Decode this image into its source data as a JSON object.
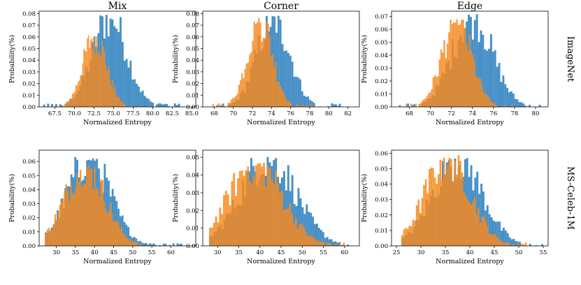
{
  "figure": {
    "columns": [
      "Mix",
      "Corner",
      "Edge"
    ],
    "rows": [
      "ImageNet",
      "MS-Celeb-1M"
    ]
  },
  "colors": {
    "blue": "#3d8ac4",
    "orange": "#f7891e"
  },
  "chart_data": [
    {
      "type": "bar",
      "row": "ImageNet",
      "column": "Mix",
      "xlabel": "Normalized Entropy",
      "ylabel": "Probability(%)",
      "xlim": [
        65.5,
        85.5
      ],
      "ylim": [
        0,
        0.082
      ],
      "xticks": [
        "67.5",
        "70.0",
        "72.5",
        "75.0",
        "77.5",
        "80.0",
        "82.5",
        "85.0"
      ],
      "yticks": [
        "0.00",
        "0.01",
        "0.02",
        "0.03",
        "0.04",
        "0.05",
        "0.06",
        "0.07",
        "0.08"
      ],
      "series": [
        {
          "color": "blue",
          "mean": 74.5,
          "sd": 2.2,
          "peak": 0.079,
          "range": [
            66.0,
            84.0
          ]
        },
        {
          "color": "orange",
          "mean": 72.6,
          "sd": 1.5,
          "peak": 0.063,
          "range": [
            67.8,
            78.0
          ]
        }
      ]
    },
    {
      "type": "bar",
      "row": "ImageNet",
      "column": "Corner",
      "xlabel": "Normalized Entropy",
      "ylabel": "Probability(%)",
      "xlim": [
        66.8,
        83.2
      ],
      "ylim": [
        0,
        0.082
      ],
      "xticks": [
        "68",
        "70",
        "72",
        "74",
        "76",
        "78",
        "80",
        "82"
      ],
      "yticks": [
        "0.00",
        "0.01",
        "0.02",
        "0.03",
        "0.04",
        "0.05",
        "0.06",
        "0.07",
        "0.08"
      ],
      "series": [
        {
          "color": "blue",
          "mean": 74.2,
          "sd": 1.7,
          "peak": 0.079,
          "range": [
            68.0,
            82.5
          ]
        },
        {
          "color": "orange",
          "mean": 72.8,
          "sd": 1.3,
          "peak": 0.078,
          "range": [
            67.8,
            79.0
          ]
        }
      ]
    },
    {
      "type": "bar",
      "row": "ImageNet",
      "column": "Edge",
      "xlabel": "Normalized Entropy",
      "ylabel": "Probability(%)",
      "xlim": [
        66.3,
        81.2
      ],
      "ylim": [
        0,
        0.074
      ],
      "xticks": [
        "68",
        "70",
        "72",
        "74",
        "76",
        "78",
        "80"
      ],
      "yticks": [
        "0.00",
        "0.01",
        "0.02",
        "0.03",
        "0.04",
        "0.05",
        "0.06",
        "0.07"
      ],
      "series": [
        {
          "color": "blue",
          "mean": 74.0,
          "sd": 1.9,
          "peak": 0.072,
          "range": [
            67.0,
            80.5
          ]
        },
        {
          "color": "orange",
          "mean": 72.5,
          "sd": 1.4,
          "peak": 0.068,
          "range": [
            67.5,
            78.0
          ]
        }
      ]
    },
    {
      "type": "bar",
      "row": "MS-Celeb-1M",
      "column": "Mix",
      "xlabel": "Normalized Entropy",
      "ylabel": "Probability(%)",
      "xlim": [
        25.5,
        66.5
      ],
      "ylim": [
        0,
        0.068
      ],
      "xticks": [
        "30",
        "35",
        "40",
        "45",
        "50",
        "55",
        "60"
      ],
      "yticks": [
        "0.00",
        "0.01",
        "0.02",
        "0.03",
        "0.04",
        "0.05",
        "0.06"
      ],
      "series": [
        {
          "color": "blue",
          "mean": 38.5,
          "sd": 5.6,
          "peak": 0.064,
          "range": [
            27.0,
            63.0
          ]
        },
        {
          "color": "orange",
          "mean": 37.5,
          "sd": 5.3,
          "peak": 0.058,
          "range": [
            27.0,
            56.0
          ]
        }
      ]
    },
    {
      "type": "bar",
      "row": "MS-Celeb-1M",
      "column": "Corner",
      "xlabel": "Normalized Entropy",
      "ylabel": "Probability(%)",
      "xlim": [
        26.5,
        63.5
      ],
      "ylim": [
        0,
        0.054
      ],
      "xticks": [
        "30",
        "35",
        "40",
        "45",
        "50",
        "55",
        "60"
      ],
      "yticks": [
        "0.00",
        "0.01",
        "0.02",
        "0.03",
        "0.04",
        "0.05"
      ],
      "series": [
        {
          "color": "blue",
          "mean": 42.0,
          "sd": 6.5,
          "peak": 0.051,
          "range": [
            28.0,
            62.0
          ]
        },
        {
          "color": "orange",
          "mean": 39.0,
          "sd": 6.3,
          "peak": 0.048,
          "range": [
            28.0,
            61.0
          ]
        }
      ]
    },
    {
      "type": "bar",
      "row": "MS-Celeb-1M",
      "column": "Edge",
      "xlabel": "Normalized Entropy",
      "ylabel": "Probability(%)",
      "xlim": [
        24.0,
        56.0
      ],
      "ylim": [
        0,
        0.062
      ],
      "xticks": [
        "25",
        "30",
        "35",
        "40",
        "45",
        "50",
        "55"
      ],
      "yticks": [
        "0.00",
        "0.01",
        "0.02",
        "0.03",
        "0.04",
        "0.05",
        "0.06"
      ],
      "series": [
        {
          "color": "blue",
          "mean": 37.5,
          "sd": 5.0,
          "peak": 0.058,
          "range": [
            26.0,
            55.0
          ]
        },
        {
          "color": "orange",
          "mean": 35.5,
          "sd": 4.6,
          "peak": 0.059,
          "range": [
            26.0,
            52.0
          ]
        }
      ]
    }
  ]
}
